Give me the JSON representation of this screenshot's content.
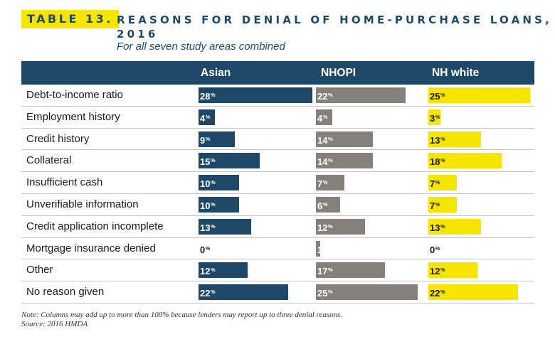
{
  "header": {
    "table_tag": "TABLE 13.",
    "title": "REASONS FOR DENIAL OF HOME-PURCHASE LOANS, 2016",
    "subtitle": "For all seven study areas combined"
  },
  "columns": {
    "asian": "Asian",
    "nhopi": "NHOPI",
    "nhwhite": "NH white"
  },
  "colors": {
    "asian": "#1d4868",
    "nhopi": "#858079",
    "nhwhite": "#f5e500",
    "header_bg": "#1d4868"
  },
  "percent_sign": "%",
  "chart_data": {
    "type": "bar",
    "orientation": "horizontal",
    "title": "REASONS FOR DENIAL OF HOME-PURCHASE LOANS, 2016",
    "subtitle": "For all seven study areas combined",
    "categories": [
      "Debt-to-income ratio",
      "Employment history",
      "Credit history",
      "Collateral",
      "Insufficient cash",
      "Unverifiable information",
      "Credit application incomplete",
      "Mortgage insurance denied",
      "Other",
      "No reason given"
    ],
    "series": [
      {
        "name": "Asian",
        "values": [
          28,
          4,
          9,
          15,
          10,
          10,
          13,
          0,
          12,
          22
        ]
      },
      {
        "name": "NHOPI",
        "values": [
          22,
          4,
          14,
          14,
          7,
          6,
          12,
          1,
          17,
          25
        ]
      },
      {
        "name": "NH white",
        "values": [
          25,
          3,
          13,
          18,
          7,
          7,
          13,
          0,
          12,
          22
        ]
      }
    ],
    "unit": "%"
  },
  "footer": {
    "note": "Note: Columns may add up to more than 100% because lenders may report up to three denial reasons.",
    "source": "Source: 2016 HMDA"
  }
}
